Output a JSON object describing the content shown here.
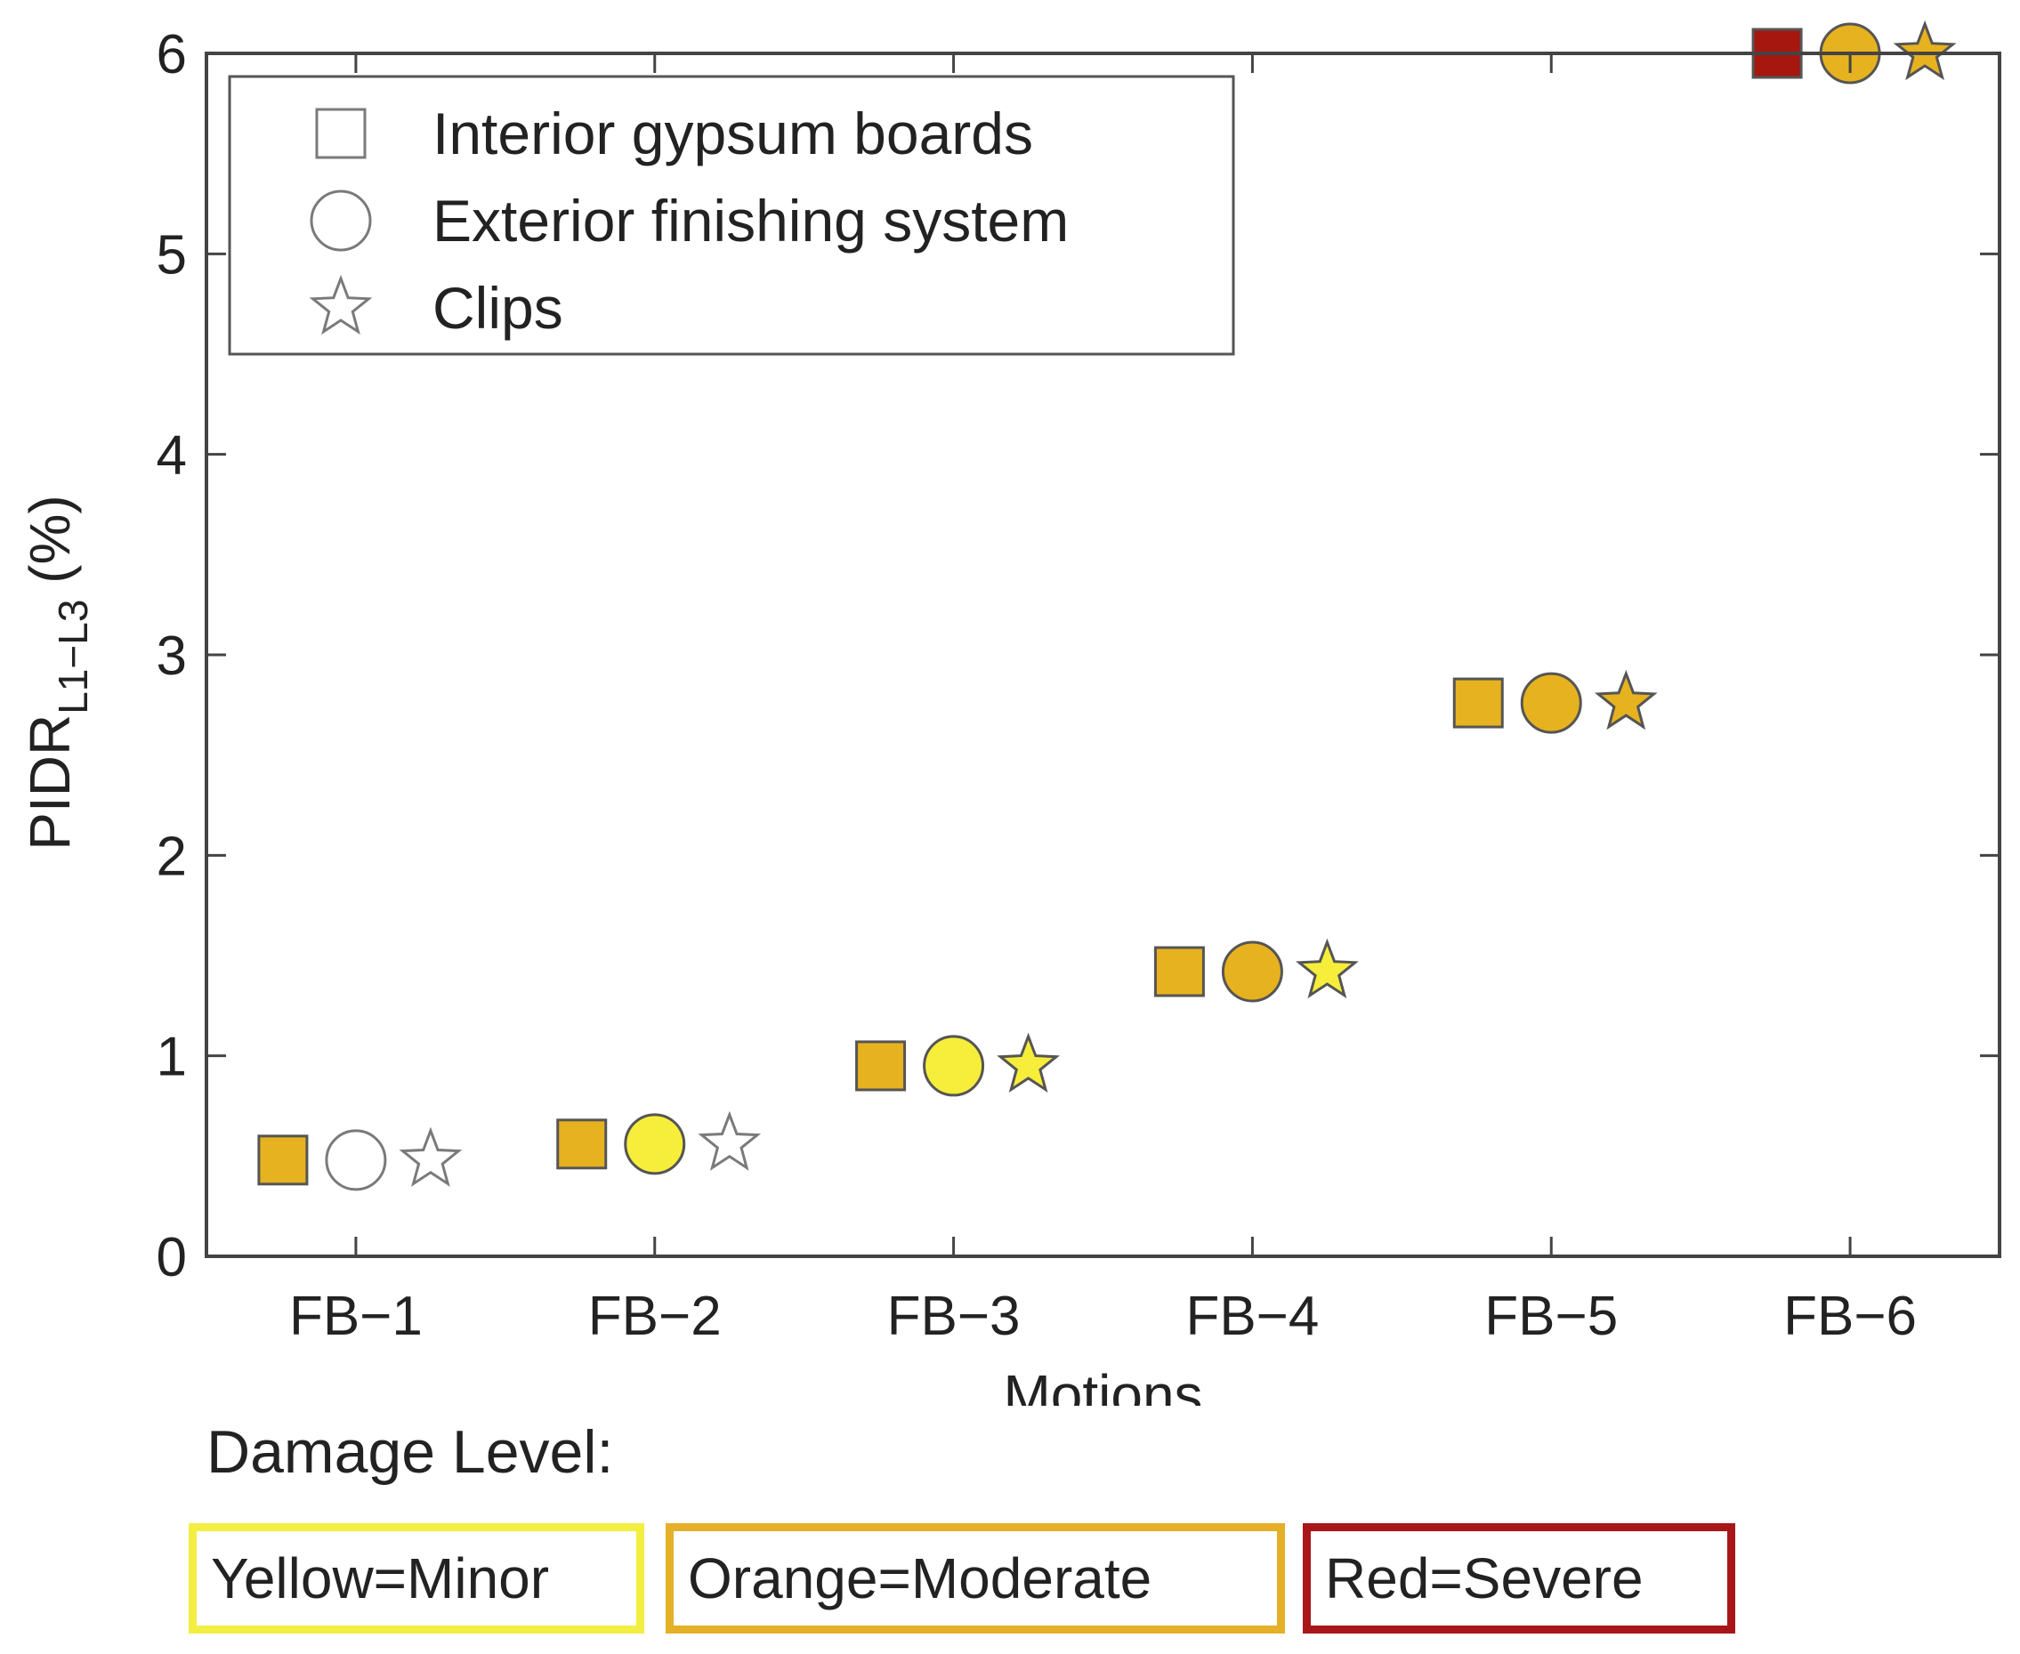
{
  "chart_data": {
    "type": "scatter",
    "categories": [
      "FB−1",
      "FB−2",
      "FB−3",
      "FB−4",
      "FB−5",
      "FB−6"
    ],
    "xlabel": "Motions",
    "ylabel_main": "PIDR",
    "ylabel_sub": "L1−L3",
    "ylabel_unit": " (%)",
    "ylim": [
      0,
      6
    ],
    "yticks": [
      0,
      1,
      2,
      3,
      4,
      5,
      6
    ],
    "yticklabels": [
      "0",
      "1",
      "2",
      "3",
      "4",
      "5",
      "6"
    ],
    "grid": false,
    "legend_position": "top-left",
    "series": [
      {
        "name": "Interior gypsum boards",
        "marker": "square",
        "values": [
          0.48,
          0.56,
          0.95,
          1.42,
          2.76,
          6.0
        ],
        "damage": [
          "moderate",
          "moderate",
          "moderate",
          "moderate",
          "moderate",
          "severe"
        ]
      },
      {
        "name": "Exterior finishing system",
        "marker": "circle",
        "values": [
          0.48,
          0.56,
          0.95,
          1.42,
          2.76,
          6.0
        ],
        "damage": [
          "none",
          "minor",
          "minor",
          "moderate",
          "moderate",
          "moderate"
        ]
      },
      {
        "name": "Clips",
        "marker": "star",
        "values": [
          0.48,
          0.56,
          0.95,
          1.42,
          2.76,
          6.0
        ],
        "damage": [
          "none",
          "none",
          "minor",
          "minor",
          "moderate",
          "moderate"
        ]
      }
    ],
    "damage_colors": {
      "none": "#ffffff",
      "minor": "#f6ee3a",
      "moderate": "#e7b21f",
      "severe": "#a5170f"
    }
  },
  "damage_legend": {
    "title": "Damage Level:",
    "items": [
      {
        "label": "Yellow=Minor",
        "color": "#f2ee42"
      },
      {
        "label": "Orange=Moderate",
        "color": "#e4b028"
      },
      {
        "label": "Red=Severe",
        "color": "#a8161a"
      }
    ]
  }
}
